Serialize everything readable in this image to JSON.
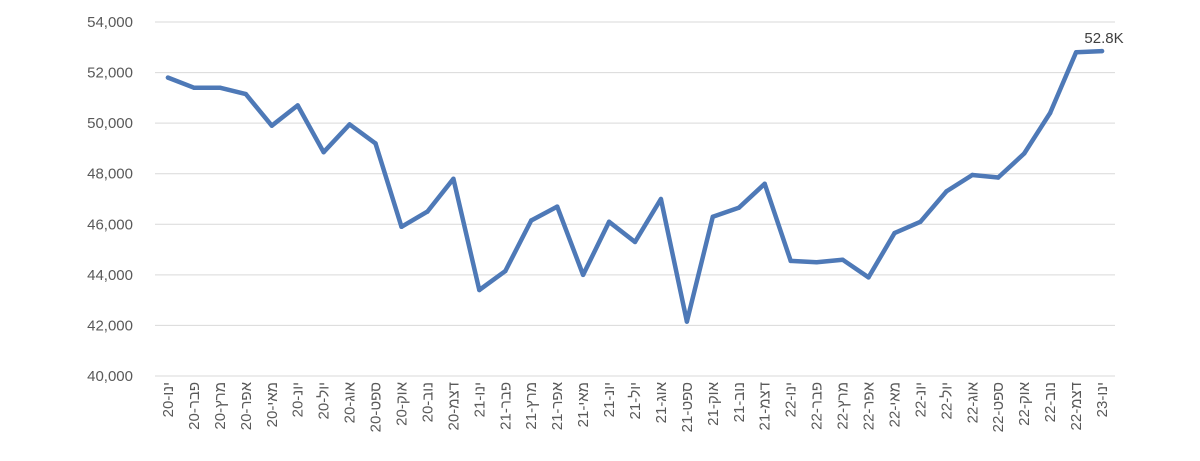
{
  "chart_data": {
    "type": "line",
    "title": "",
    "xlabel": "",
    "ylabel": "",
    "ylim": [
      40000,
      54000
    ],
    "yticks": [
      40000,
      42000,
      44000,
      46000,
      48000,
      50000,
      52000,
      54000
    ],
    "ytick_labels": [
      "40,000",
      "42,000",
      "44,000",
      "46,000",
      "48,000",
      "50,000",
      "52,000",
      "54,000"
    ],
    "grid": true,
    "legend": "none",
    "categories": [
      "ינו-20",
      "פבר-20",
      "מרץ-20",
      "אפר-20",
      "מאי-20",
      "יונ-20",
      "יול-20",
      "אוג-20",
      "ספט-20",
      "אוק-20",
      "נוב-20",
      "דצמ-20",
      "ינו-21",
      "פבר-21",
      "מרץ-21",
      "אפר-21",
      "מאי-21",
      "יונ-21",
      "יול-21",
      "אוג-21",
      "ספט-21",
      "אוק-21",
      "נוב-21",
      "דצמ-21",
      "ינו-22",
      "פבר-22",
      "מרץ-22",
      "אפר-22",
      "מאי-22",
      "יונ-22",
      "יול-22",
      "אוג-22",
      "ספט-22",
      "אוק-22",
      "נוב-22",
      "דצמ-22",
      "ינו-23"
    ],
    "series": [
      {
        "color": "#4e79b7",
        "values": [
          51800,
          51400,
          51400,
          51150,
          49900,
          50700,
          48850,
          49950,
          49200,
          45900,
          46500,
          47800,
          43400,
          44150,
          46150,
          46700,
          44000,
          46100,
          45300,
          47000,
          42150,
          46300,
          46650,
          47600,
          44550,
          44500,
          44600,
          43900,
          45650,
          46100,
          47300,
          47950,
          47850,
          48800,
          50400,
          52800,
          52850
        ]
      }
    ],
    "data_labels": [
      {
        "index": 36,
        "text": "52.8K"
      }
    ]
  }
}
